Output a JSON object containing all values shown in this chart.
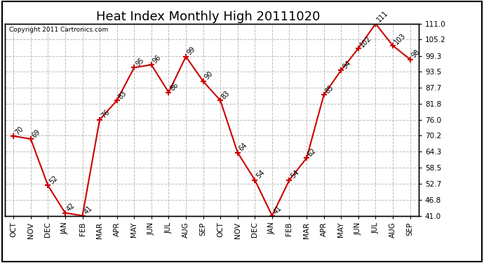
{
  "title": "Heat Index Monthly High 20111020",
  "copyright": "Copyright 2011 Cartronics.com",
  "months": [
    "OCT",
    "NOV",
    "DEC",
    "JAN",
    "FEB",
    "MAR",
    "APR",
    "MAY",
    "JUN",
    "JUL",
    "AUG",
    "SEP",
    "OCT",
    "NOV",
    "DEC",
    "JAN",
    "FEB",
    "MAR",
    "APR",
    "MAY",
    "JUN",
    "JUL",
    "AUG",
    "SEP"
  ],
  "values": [
    70,
    69,
    52,
    42,
    41,
    76,
    83,
    95,
    96,
    86,
    99,
    90,
    83,
    64,
    54,
    41,
    54,
    62,
    85,
    94,
    102,
    111,
    103,
    98
  ],
  "line_color": "#cc0000",
  "marker_color": "#cc0000",
  "bg_color": "#ffffff",
  "grid_color": "#bbbbbb",
  "ylim_min": 41.0,
  "ylim_max": 111.0,
  "ytick_values": [
    41.0,
    46.8,
    52.7,
    58.5,
    64.3,
    70.2,
    76.0,
    81.8,
    87.7,
    93.5,
    99.3,
    105.2,
    111.0
  ],
  "ytick_labels": [
    "41.0",
    "46.8",
    "52.7",
    "58.5",
    "64.3",
    "70.2",
    "76.0",
    "81.8",
    "87.7",
    "93.5",
    "99.3",
    "105.2",
    "111.0"
  ],
  "title_fontsize": 13,
  "copyright_fontsize": 6.5,
  "label_fontsize": 7,
  "tick_fontsize": 7.5
}
